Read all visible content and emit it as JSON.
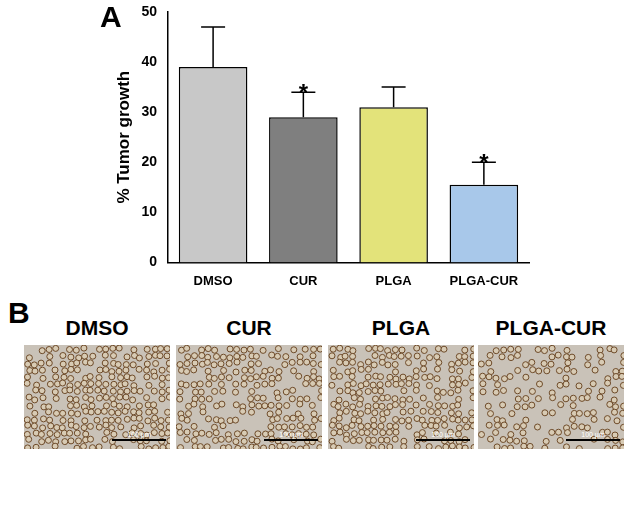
{
  "chart_data": {
    "type": "bar",
    "panel_label": "A",
    "categories": [
      "DMSO",
      "CUR",
      "PLGA",
      "PLGA-CUR"
    ],
    "values": [
      39,
      29,
      31,
      15.5
    ],
    "errors": [
      8,
      5,
      4,
      4.5
    ],
    "colors": [
      "#c8c8c8",
      "#7f7f7f",
      "#e3e37a",
      "#a8c8ea"
    ],
    "y_label": "% Tumor growth",
    "ylim": [
      0,
      50
    ],
    "yticks": [
      0,
      10,
      20,
      30,
      40,
      50
    ],
    "grid": false,
    "annotations": [
      {
        "category": "CUR",
        "text": "*"
      },
      {
        "category": "PLGA-CUR",
        "text": "*"
      }
    ]
  },
  "images_panel": {
    "panel_label": "B",
    "titles": [
      "DMSO",
      "CUR",
      "PLGA",
      "PLGA-CUR"
    ],
    "scale_bar": "100 µm"
  }
}
